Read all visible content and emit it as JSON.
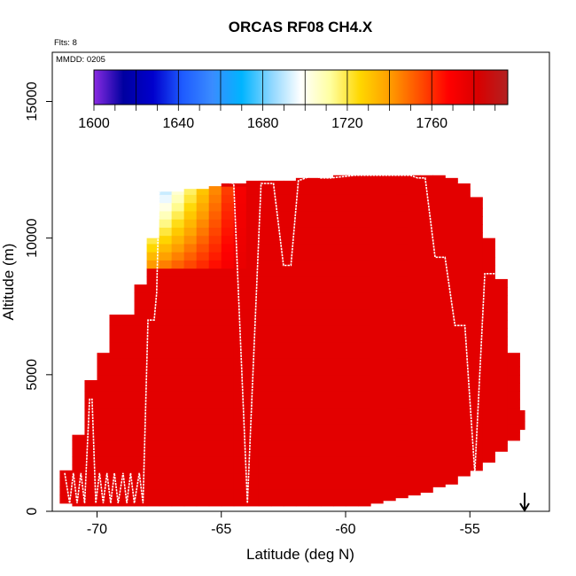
{
  "chart_data": {
    "type": "heatmap",
    "title": "ORCAS RF08 CH4.X",
    "flights_note": "Flts: 8",
    "date_note": "MMDD: 0205",
    "xlabel": "Latitude (deg N)",
    "ylabel": "Altitude (m)",
    "xlim": [
      -71.8,
      -51.8
    ],
    "ylim": [
      0,
      16800
    ],
    "x_ticks": [
      -70,
      -65,
      -60,
      -55
    ],
    "x_tick_labels": [
      "-70",
      "-65",
      "-60",
      "-55"
    ],
    "y_ticks": [
      0,
      5000,
      10000,
      15000
    ],
    "y_tick_labels": [
      "0",
      "5000",
      "10000",
      "15000"
    ],
    "colorbar": {
      "range": [
        1600,
        1796
      ],
      "tick_values": [
        1600,
        1640,
        1680,
        1720,
        1760
      ],
      "tick_labels": [
        "1600",
        "1640",
        "1680",
        "1720",
        "1760"
      ],
      "colors": [
        "#8a2be2",
        "#0000a0",
        "#0000cd",
        "#1e5bff",
        "#3a8cff",
        "#00b4ff",
        "#8ed7ff",
        "#ffffff",
        "#ffffa0",
        "#ffd700",
        "#ff9e00",
        "#ff5000",
        "#ff0000",
        "#d80000",
        "#b22222"
      ]
    },
    "value_field": {
      "default": 1778,
      "upper_tropo_band": [
        9000,
        11800
      ],
      "upper_tropo_min": 1662,
      "south_edge_lat": -68.2,
      "gradient_end_lat": -64.0
    },
    "coverage": {
      "lat_edges": [
        -71.5,
        -71.0,
        -70.5,
        -70.0,
        -69.5,
        -69.0,
        -68.5,
        -68.0,
        -67.5,
        -67.0,
        -66.5,
        -66.0,
        -65.5,
        -65.0,
        -64.5,
        -64.0,
        -63.5,
        -63.0,
        -62.5,
        -62.0,
        -61.5,
        -61.0,
        -60.5,
        -60.0,
        -59.5,
        -59.0,
        -58.5,
        -58.0,
        -57.5,
        -57.0,
        -56.5,
        -56.0,
        -55.5,
        -55.0,
        -54.5,
        -54.0,
        -53.5,
        -53.0,
        -52.8
      ],
      "alt_bottom": [
        300,
        200,
        200,
        200,
        200,
        200,
        200,
        200,
        200,
        200,
        200,
        200,
        200,
        200,
        200,
        200,
        200,
        200,
        200,
        200,
        200,
        200,
        200,
        200,
        200,
        300,
        400,
        500,
        600,
        700,
        900,
        1000,
        1300,
        1500,
        1800,
        2200,
        2600,
        3000
      ],
      "alt_top": [
        1500,
        2800,
        4800,
        5800,
        7200,
        7200,
        8300,
        10000,
        11700,
        11700,
        11800,
        11800,
        11900,
        12000,
        12000,
        12100,
        12100,
        12100,
        12100,
        12200,
        12200,
        12200,
        12300,
        12300,
        12300,
        12300,
        12300,
        12300,
        12300,
        12300,
        12300,
        12200,
        12000,
        11500,
        10000,
        8500,
        5800,
        3700
      ]
    },
    "flight_track": {
      "lat": [
        -71.3,
        -71.1,
        -70.95,
        -70.8,
        -70.65,
        -70.5,
        -70.3,
        -70.2,
        -70.05,
        -69.9,
        -69.75,
        -69.6,
        -69.45,
        -69.3,
        -69.15,
        -68.95,
        -68.8,
        -68.65,
        -68.5,
        -68.3,
        -68.15,
        -67.95,
        -67.7,
        -67.6,
        -67.5,
        -67.3,
        -67.1,
        -66.6,
        -66.2,
        -65.2,
        -64.5,
        -63.95,
        -63.4,
        -62.9,
        -62.5,
        -62.2,
        -61.9,
        -61.6,
        -61.3,
        -61.0,
        -60.6,
        -59.6,
        -59.0,
        -58.2,
        -57.7,
        -57.4,
        -57.1,
        -56.8,
        -56.4,
        -56.0,
        -55.6,
        -55.2,
        -54.8,
        -54.4,
        -54.0
      ],
      "alt": [
        1400,
        300,
        1400,
        300,
        1400,
        300,
        4100,
        4100,
        300,
        1400,
        300,
        1400,
        300,
        1400,
        300,
        1400,
        300,
        1400,
        300,
        1400,
        300,
        7000,
        7000,
        8000,
        11700,
        11800,
        11900,
        12000,
        12100,
        12100,
        12000,
        300,
        12000,
        12000,
        9000,
        9000,
        12100,
        12200,
        12300,
        12200,
        12200,
        12300,
        12300,
        12300,
        12300,
        12300,
        12200,
        12200,
        9300,
        9300,
        6800,
        6800,
        1400,
        8700,
        8700
      ]
    }
  }
}
